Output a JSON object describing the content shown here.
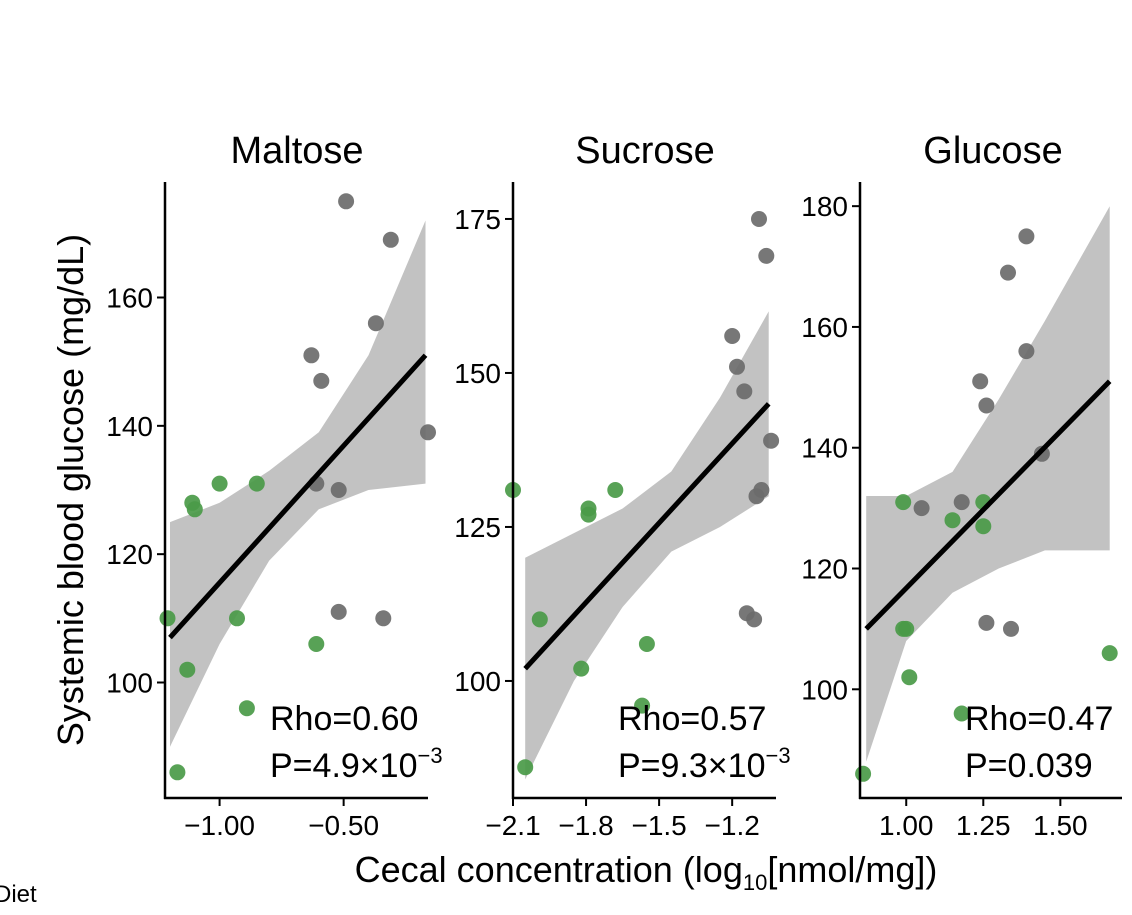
{
  "figure": {
    "ylabel": "Systemic blood glucose (mg/dL)",
    "xlabel_prefix": "Cecal concentration (log",
    "xlabel_sub": "10",
    "xlabel_suffix": "[nmol/mg])",
    "legend_fragment": "Diet"
  },
  "colors": {
    "group_gray": "#6b6b6b",
    "group_green": "#4a9a48",
    "fit_line": "#000000",
    "ci_band": "#bfbfbf"
  },
  "chart_data": [
    {
      "type": "scatter",
      "title": "Maltose",
      "xlim": [
        -1.22,
        -0.16
      ],
      "ylim": [
        82,
        178
      ],
      "xticks": [
        -1.0,
        -0.5
      ],
      "xtick_labels": [
        "−1.00",
        "−0.50"
      ],
      "yticks": [
        100,
        120,
        140,
        160
      ],
      "ytick_labels": [
        "100",
        "120",
        "140",
        "160"
      ],
      "annotation": {
        "rho": "Rho=0.60",
        "p_base": "P=4.9×10",
        "p_exp": "−3"
      },
      "fit": {
        "x": [
          -1.2,
          -0.17
        ],
        "y": [
          107,
          151
        ]
      },
      "ci": {
        "x": [
          -1.2,
          -1.0,
          -0.8,
          -0.6,
          -0.4,
          -0.17
        ],
        "upper": [
          125,
          128,
          133,
          139,
          151,
          172
        ],
        "lower": [
          90,
          106,
          119,
          127,
          130,
          131
        ]
      },
      "series": [
        {
          "color": "gray",
          "points": [
            [
              -0.49,
              175
            ],
            [
              -0.31,
              169
            ],
            [
              -0.37,
              156
            ],
            [
              -0.63,
              151
            ],
            [
              -0.59,
              147
            ],
            [
              -0.16,
              139
            ],
            [
              -0.61,
              131
            ],
            [
              -0.52,
              130
            ],
            [
              -0.52,
              111
            ],
            [
              -0.34,
              110
            ]
          ]
        },
        {
          "color": "green",
          "points": [
            [
              -1.11,
              128
            ],
            [
              -1.1,
              127
            ],
            [
              -1.0,
              131
            ],
            [
              -0.85,
              131
            ],
            [
              -1.21,
              110
            ],
            [
              -1.13,
              102
            ],
            [
              -0.93,
              110
            ],
            [
              -0.61,
              106
            ],
            [
              -0.89,
              96
            ],
            [
              -1.17,
              86
            ]
          ]
        }
      ]
    },
    {
      "type": "scatter",
      "title": "Sucrose",
      "xlim": [
        -2.1,
        -1.02
      ],
      "ylim": [
        81,
        181
      ],
      "xticks": [
        -2.1,
        -1.8,
        -1.5,
        -1.2
      ],
      "xtick_labels": [
        "−2.1",
        "−1.8",
        "−1.5",
        "−1.2"
      ],
      "yticks": [
        100,
        125,
        150,
        175
      ],
      "ytick_labels": [
        "100",
        "125",
        "150",
        "175"
      ],
      "annotation": {
        "rho": "Rho=0.57",
        "p_base": "P=9.3×10",
        "p_exp": "−3"
      },
      "fit": {
        "x": [
          -2.05,
          -1.05
        ],
        "y": [
          102,
          145
        ]
      },
      "ci": {
        "x": [
          -2.05,
          -1.85,
          -1.65,
          -1.45,
          -1.25,
          -1.05
        ],
        "upper": [
          120,
          124,
          128,
          134,
          146,
          160
        ],
        "lower": [
          84,
          100,
          112,
          121,
          125,
          130
        ]
      },
      "series": [
        {
          "color": "gray",
          "points": [
            [
              -1.09,
              175
            ],
            [
              -1.06,
              169
            ],
            [
              -1.2,
              156
            ],
            [
              -1.18,
              151
            ],
            [
              -1.15,
              147
            ],
            [
              -1.04,
              139
            ],
            [
              -1.08,
              131
            ],
            [
              -1.1,
              130
            ],
            [
              -1.14,
              111
            ],
            [
              -1.11,
              110
            ]
          ]
        },
        {
          "color": "green",
          "points": [
            [
              -2.1,
              131
            ],
            [
              -1.79,
              128
            ],
            [
              -1.79,
              127
            ],
            [
              -1.68,
              131
            ],
            [
              -1.99,
              110
            ],
            [
              -1.82,
              102
            ],
            [
              -1.55,
              106
            ],
            [
              -1.57,
              96
            ],
            [
              -2.05,
              86
            ]
          ]
        }
      ]
    },
    {
      "type": "scatter",
      "title": "Glucose",
      "xlim": [
        0.85,
        1.7
      ],
      "ylim": [
        82,
        184
      ],
      "xticks": [
        1.0,
        1.25,
        1.5
      ],
      "xtick_labels": [
        "1.00",
        "1.25",
        "1.50"
      ],
      "yticks": [
        100,
        120,
        140,
        160,
        180
      ],
      "ytick_labels": [
        "100",
        "120",
        "140",
        "160",
        "180"
      ],
      "annotation": {
        "rho": "Rho=0.47",
        "p_base": "P=0.039",
        "p_exp": ""
      },
      "fit": {
        "x": [
          0.87,
          1.66
        ],
        "y": [
          110,
          151
        ]
      },
      "ci": {
        "x": [
          0.87,
          1.0,
          1.15,
          1.3,
          1.45,
          1.66
        ],
        "upper": [
          132,
          132,
          136,
          148,
          161,
          180
        ],
        "lower": [
          88,
          108,
          116,
          120,
          123,
          123
        ]
      },
      "series": [
        {
          "color": "gray",
          "points": [
            [
              1.39,
              175
            ],
            [
              1.33,
              169
            ],
            [
              1.39,
              156
            ],
            [
              1.24,
              151
            ],
            [
              1.26,
              147
            ],
            [
              1.44,
              139
            ],
            [
              1.18,
              131
            ],
            [
              1.05,
              130
            ],
            [
              1.26,
              111
            ],
            [
              1.34,
              110
            ]
          ]
        },
        {
          "color": "green",
          "points": [
            [
              0.99,
              131
            ],
            [
              1.15,
              128
            ],
            [
              1.25,
              127
            ],
            [
              1.25,
              131
            ],
            [
              0.99,
              110
            ],
            [
              1.0,
              110
            ],
            [
              1.01,
              102
            ],
            [
              1.66,
              106
            ],
            [
              1.18,
              96
            ],
            [
              0.86,
              86
            ]
          ]
        }
      ]
    }
  ]
}
